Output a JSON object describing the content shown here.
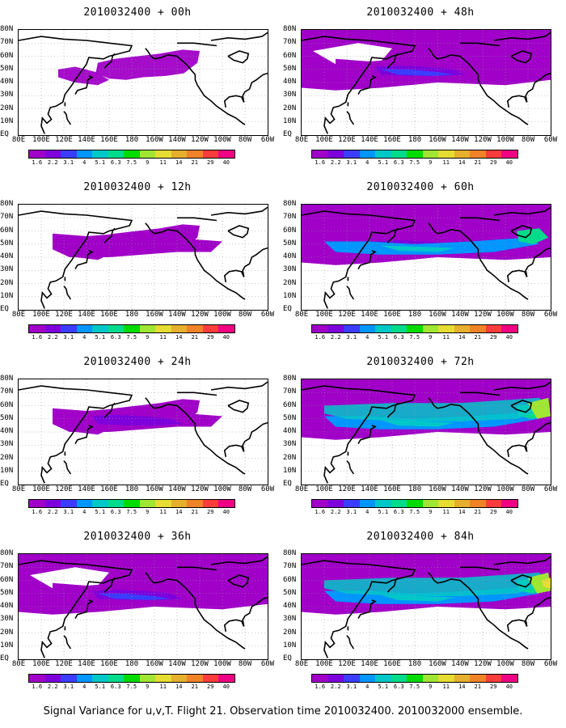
{
  "panels": [
    {
      "title": "2010032400 + 00h",
      "intensity": 0.0
    },
    {
      "title": "2010032400 + 48h",
      "intensity": 1.0
    },
    {
      "title": "2010032400 + 12h",
      "intensity": 0.2
    },
    {
      "title": "2010032400 + 60h",
      "intensity": 2.0
    },
    {
      "title": "2010032400 + 24h",
      "intensity": 0.5
    },
    {
      "title": "2010032400 + 72h",
      "intensity": 2.6
    },
    {
      "title": "2010032400 + 36h",
      "intensity": 0.8
    },
    {
      "title": "2010032400 + 84h",
      "intensity": 3.0
    }
  ],
  "lat_labels": [
    "80N",
    "70N",
    "60N",
    "50N",
    "40N",
    "30N",
    "20N",
    "10N",
    "EQ"
  ],
  "lon_labels": [
    "80E",
    "100E",
    "120E",
    "140E",
    "160E",
    "180",
    "160W",
    "140W",
    "120W",
    "100W",
    "80W",
    "60W"
  ],
  "colorbar": {
    "labels": [
      "1.6",
      "2.2",
      "3.1",
      "4",
      "5.1",
      "6.3",
      "7.5",
      "9",
      "11",
      "14",
      "21",
      "29",
      "40"
    ],
    "colors": [
      "#a000c8",
      "#7d00dc",
      "#3c3cff",
      "#0096ff",
      "#00c8c8",
      "#00dc8c",
      "#00dc00",
      "#a0e632",
      "#e6dc32",
      "#e6af2d",
      "#f08228",
      "#fa3c3c",
      "#f00082"
    ]
  },
  "footer": "Signal Variance for u,v,T. Flight 21. Observation time 2010032400. 2010032000 ensemble."
}
